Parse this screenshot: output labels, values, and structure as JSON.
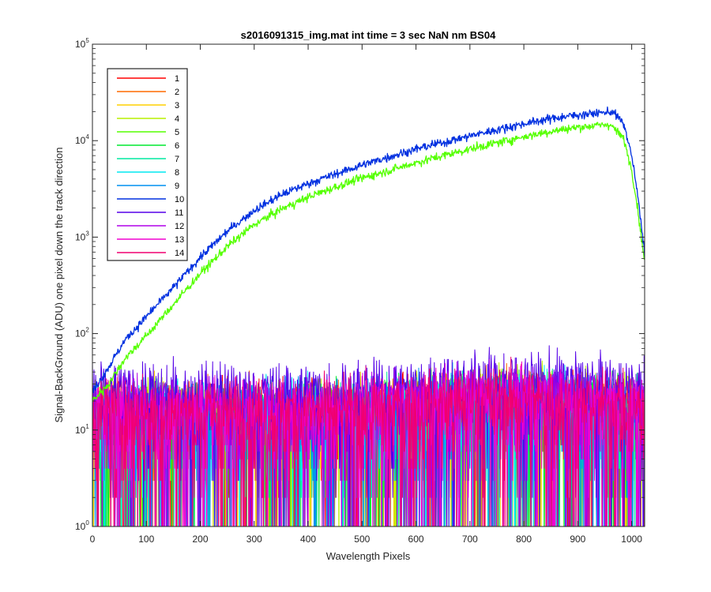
{
  "chart_data": {
    "type": "line",
    "title": "s2016091315_img.mat int time = 3 sec  NaN nm BS04",
    "xlabel": "Wavelength Pixels",
    "ylabel": "Signal-BackGround (ADU) one pixel down the track direction",
    "xlim": [
      0,
      1024
    ],
    "ylim": [
      1,
      100000
    ],
    "yscale": "log",
    "grid": false,
    "legend_position": "top-left",
    "x_ticks": [
      "0",
      "100",
      "200",
      "300",
      "400",
      "500",
      "600",
      "700",
      "800",
      "900",
      "1000"
    ],
    "y_ticks": [
      {
        "base": "10",
        "exp": "0"
      },
      {
        "base": "10",
        "exp": "1"
      },
      {
        "base": "10",
        "exp": "2"
      },
      {
        "base": "10",
        "exp": "3"
      },
      {
        "base": "10",
        "exp": "4"
      },
      {
        "base": "10",
        "exp": "5"
      }
    ],
    "series": [
      {
        "name": "1",
        "color": "#ff0000",
        "profile": "noise",
        "noise_level": 14
      },
      {
        "name": "2",
        "color": "#ff6a00",
        "profile": "noise",
        "noise_level": 14
      },
      {
        "name": "3",
        "color": "#ffd000",
        "profile": "noise",
        "noise_level": 14
      },
      {
        "name": "4",
        "color": "#b8f000",
        "profile": "noise",
        "noise_level": 15
      },
      {
        "name": "5",
        "color": "#55ff00",
        "profile": "signal",
        "points": [
          {
            "x": 0,
            "y": 20
          },
          {
            "x": 30,
            "y": 30
          },
          {
            "x": 60,
            "y": 55
          },
          {
            "x": 100,
            "y": 95
          },
          {
            "x": 150,
            "y": 200
          },
          {
            "x": 200,
            "y": 420
          },
          {
            "x": 250,
            "y": 800
          },
          {
            "x": 300,
            "y": 1350
          },
          {
            "x": 350,
            "y": 1950
          },
          {
            "x": 400,
            "y": 2600
          },
          {
            "x": 450,
            "y": 3300
          },
          {
            "x": 500,
            "y": 4100
          },
          {
            "x": 550,
            "y": 4900
          },
          {
            "x": 600,
            "y": 5900
          },
          {
            "x": 650,
            "y": 7000
          },
          {
            "x": 700,
            "y": 8200
          },
          {
            "x": 750,
            "y": 9500
          },
          {
            "x": 800,
            "y": 11000
          },
          {
            "x": 850,
            "y": 12500
          },
          {
            "x": 900,
            "y": 13800
          },
          {
            "x": 960,
            "y": 14800
          },
          {
            "x": 985,
            "y": 10500
          },
          {
            "x": 1000,
            "y": 5000
          },
          {
            "x": 1010,
            "y": 2200
          },
          {
            "x": 1024,
            "y": 550
          }
        ]
      },
      {
        "name": "6",
        "color": "#00e830",
        "profile": "noise",
        "noise_level": 14
      },
      {
        "name": "7",
        "color": "#00e8a0",
        "profile": "noise",
        "noise_level": 14
      },
      {
        "name": "8",
        "color": "#00e8f0",
        "profile": "noise",
        "noise_level": 14
      },
      {
        "name": "9",
        "color": "#0090f0",
        "profile": "noise",
        "noise_level": 14
      },
      {
        "name": "10",
        "color": "#0030e0",
        "profile": "signal",
        "points": [
          {
            "x": 0,
            "y": 25
          },
          {
            "x": 30,
            "y": 45
          },
          {
            "x": 60,
            "y": 85
          },
          {
            "x": 100,
            "y": 150
          },
          {
            "x": 150,
            "y": 300
          },
          {
            "x": 200,
            "y": 620
          },
          {
            "x": 250,
            "y": 1150
          },
          {
            "x": 300,
            "y": 1900
          },
          {
            "x": 350,
            "y": 2750
          },
          {
            "x": 400,
            "y": 3600
          },
          {
            "x": 450,
            "y": 4500
          },
          {
            "x": 500,
            "y": 5600
          },
          {
            "x": 550,
            "y": 6800
          },
          {
            "x": 600,
            "y": 8200
          },
          {
            "x": 650,
            "y": 9600
          },
          {
            "x": 700,
            "y": 11200
          },
          {
            "x": 750,
            "y": 13000
          },
          {
            "x": 800,
            "y": 15000
          },
          {
            "x": 850,
            "y": 17000
          },
          {
            "x": 900,
            "y": 18500
          },
          {
            "x": 965,
            "y": 20000
          },
          {
            "x": 985,
            "y": 15000
          },
          {
            "x": 1000,
            "y": 7000
          },
          {
            "x": 1010,
            "y": 3000
          },
          {
            "x": 1024,
            "y": 700
          }
        ]
      },
      {
        "name": "11",
        "color": "#5500e8",
        "profile": "noise",
        "noise_level": 22
      },
      {
        "name": "12",
        "color": "#b000e8",
        "profile": "noise",
        "noise_level": 16
      },
      {
        "name": "13",
        "color": "#f000d0",
        "profile": "noise",
        "noise_level": 15
      },
      {
        "name": "14",
        "color": "#f00070",
        "profile": "noise",
        "noise_level": 15
      }
    ]
  }
}
